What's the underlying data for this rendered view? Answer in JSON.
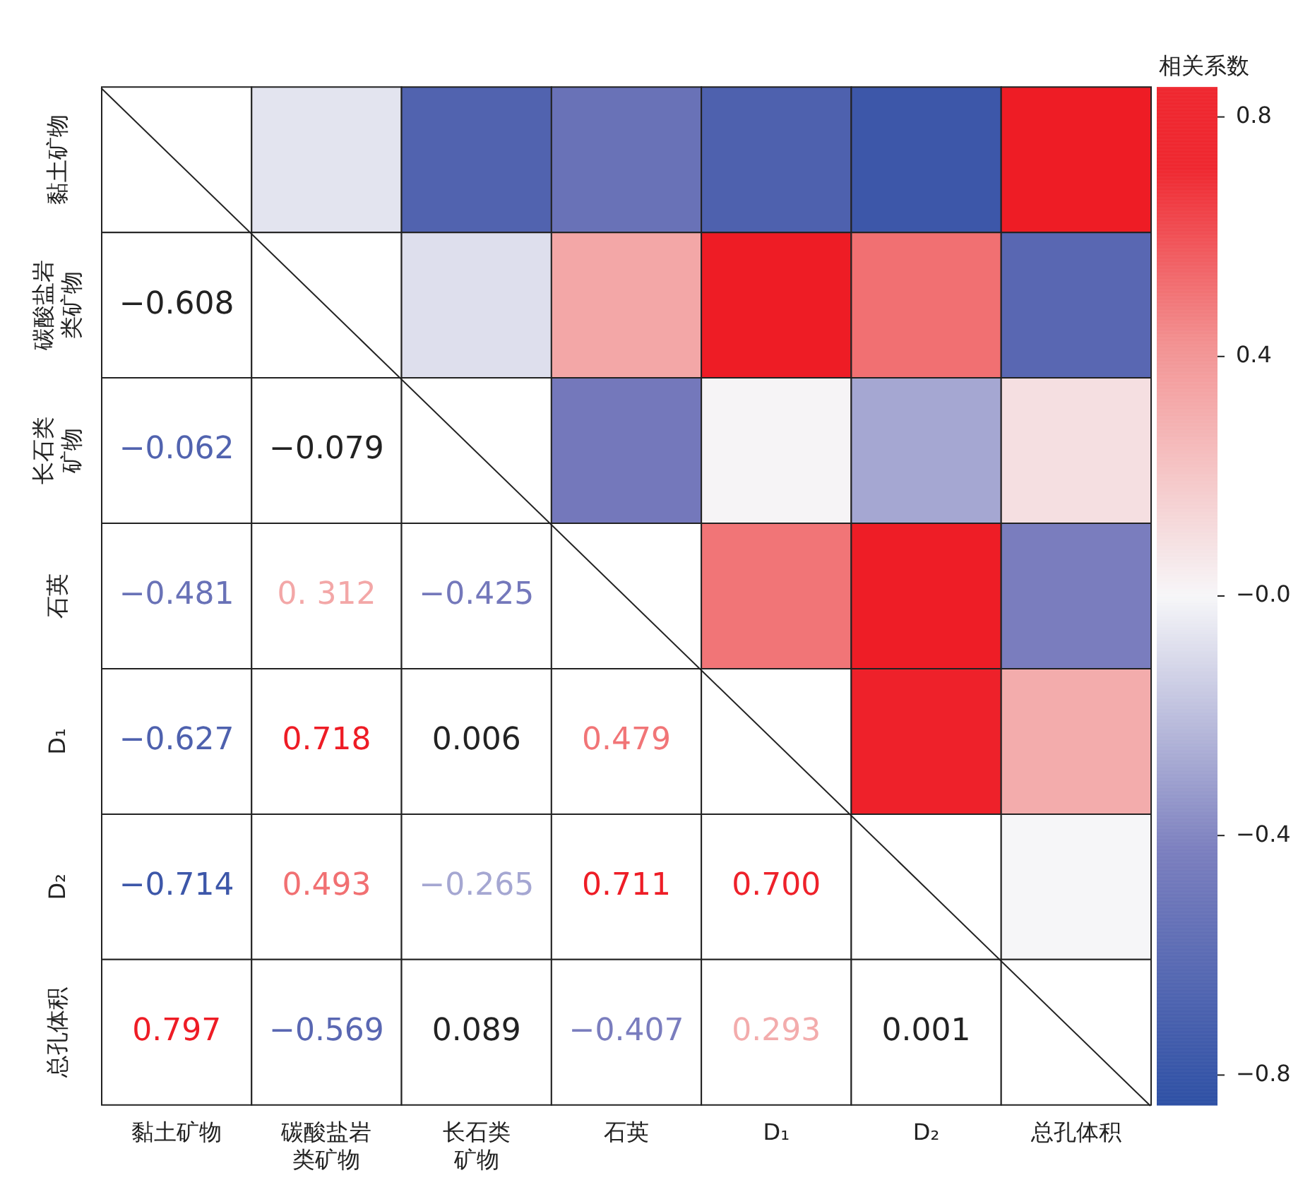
{
  "chart_data": {
    "type": "heatmap",
    "clabel": "相关系数",
    "categories": [
      "黏土矿物",
      "碳酸盐岩类矿物",
      "长石类矿物",
      "石英",
      "D₁",
      "D₂",
      "总孔体积"
    ],
    "y_categories": [
      "黏土矿物",
      "碳酸盐岩类矿物",
      "长石类矿物",
      "石英",
      "D₁",
      "D₂",
      "总孔体积"
    ],
    "cells": [
      [
        null,
        -0.062,
        -0.608,
        -0.481,
        -0.627,
        -0.714,
        0.797
      ],
      [
        null,
        null,
        -0.079,
        0.312,
        0.718,
        0.493,
        -0.569
      ],
      [
        null,
        null,
        null,
        -0.425,
        0.006,
        -0.265,
        0.089
      ],
      [
        null,
        null,
        null,
        null,
        0.479,
        0.711,
        -0.407
      ],
      [
        null,
        null,
        null,
        null,
        null,
        0.7,
        0.293
      ],
      [
        null,
        null,
        null,
        null,
        null,
        null,
        0.001
      ],
      [
        null,
        null,
        null,
        null,
        null,
        null,
        null
      ]
    ],
    "cell_labels": [
      [
        null,
        null,
        null,
        null,
        null,
        null,
        null
      ],
      [
        "−0.608",
        null,
        null,
        null,
        null,
        null,
        null
      ],
      [
        "−0.062",
        "−0.079",
        null,
        null,
        null,
        null,
        null
      ],
      [
        "−0.481",
        "0. 312",
        "−0.425",
        null,
        null,
        null,
        null
      ],
      [
        "−0.627",
        "0.718",
        "0.006",
        "0.479",
        null,
        null,
        null
      ],
      [
        "−0.714",
        "0.493",
        "−0.265",
        "0.711",
        "0.700",
        null,
        null
      ],
      [
        "0.797",
        "−0.569",
        "0.089",
        "−0.407",
        "0.293",
        "0.001",
        null
      ]
    ],
    "clim": [
      -0.85,
      0.85
    ],
    "cticks": [
      {
        "value": 0.8,
        "label": "0.8"
      },
      {
        "value": 0.4,
        "label": "0.4"
      },
      {
        "value": 0,
        "label": "−0.0"
      },
      {
        "value": -0.4,
        "label": "−0.4"
      },
      {
        "value": -0.8,
        "label": "−0.8"
      }
    ]
  }
}
